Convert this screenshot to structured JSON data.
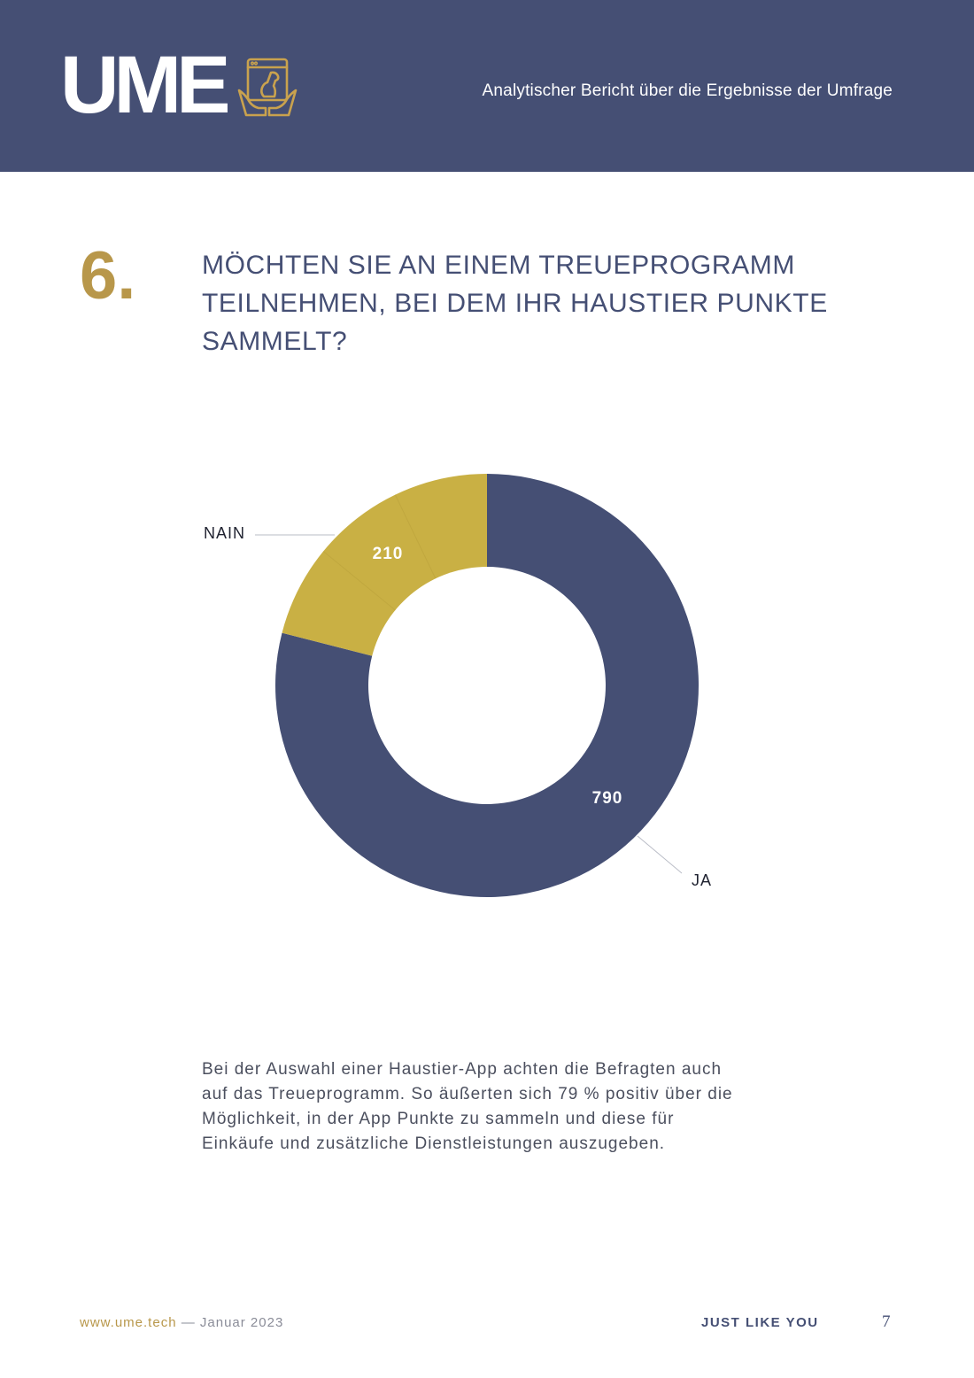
{
  "header": {
    "logo_text": "UME",
    "logo_icon": "dog-in-hands-icon",
    "subtitle": "Analytischer Bericht über die Ergebnisse der Umfrage"
  },
  "question": {
    "number": "6.",
    "title": "MÖCHTEN SIE AN EINEM TREUEPROGRAMM TEILNEHMEN, BEI DEM IHR HAUSTIER PUNKTE SAMMELT?"
  },
  "chart_data": {
    "type": "pie",
    "variant": "donut",
    "categories": [
      "JA",
      "NAIN"
    ],
    "values": [
      790,
      210
    ],
    "colors": [
      "#454f74",
      "#c9b044"
    ],
    "value_labels": [
      "790",
      "210"
    ]
  },
  "body": {
    "paragraph": "Bei der Auswahl einer Haustier-App achten die Befragten auch auf das Treueprogramm. So äußerten sich 79 % positiv über die Möglichkeit, in der App Punkte zu sammeln und diese für Einkäufe und zusätzliche Dienstleistungen auszugeben."
  },
  "footer": {
    "url": "www.ume.tech",
    "separator": " — ",
    "date": "Januar 2023",
    "slogan": "JUST LIKE YOU",
    "page_number": "7"
  },
  "colors": {
    "navy": "#454f74",
    "gold": "#b8974a",
    "mustard": "#c9b044"
  }
}
